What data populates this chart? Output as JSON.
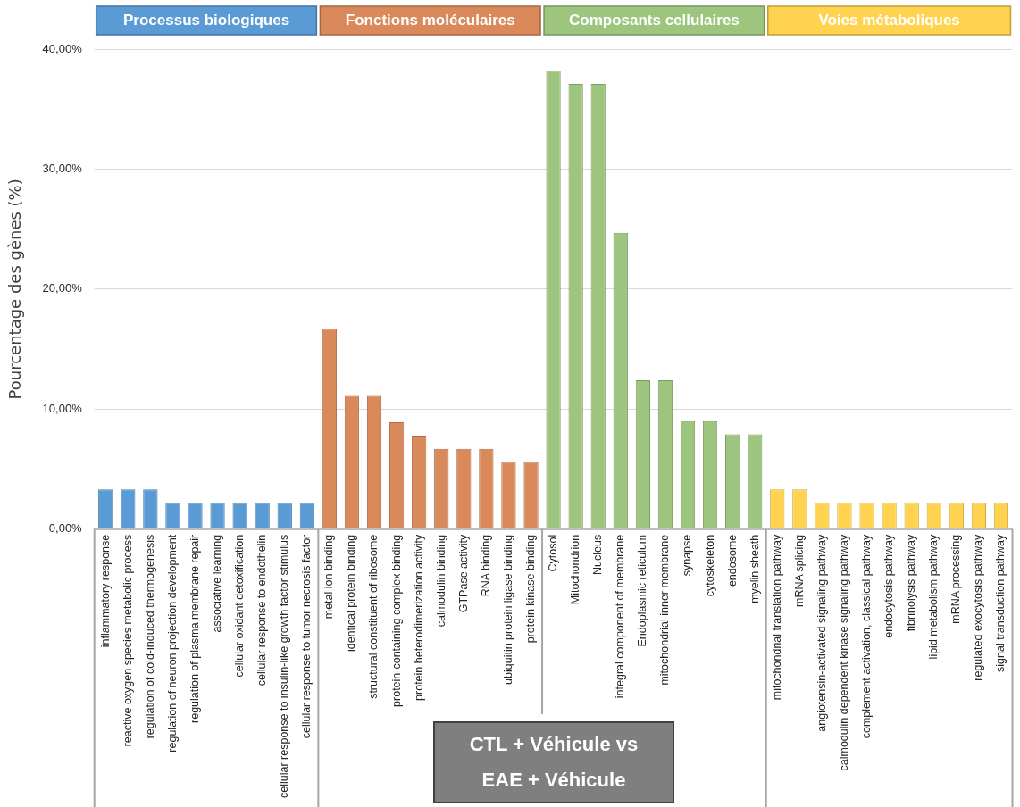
{
  "chart_data": {
    "type": "bar",
    "ylabel": "Pourcentage des gènes (%)",
    "categories": [
      "inflammatory response",
      "reactive oxygen species metabolic process",
      "regulation of cold-induced thermogenesis",
      "regulation of neuron projection development",
      "regulation of plasma membrane repair",
      "associative learning",
      "cellular oxidant detoxification",
      "cellular response to endothelin",
      "cellular response to insulin-like growth factor stimulus",
      "cellular response to tumor necrosis factor",
      "metal ion binding",
      "identical protein binding",
      "structural constituent of ribosome",
      "protein-containing complex binding",
      "protein heterodimerization activity",
      "calmodulin binding",
      "GTPase activity",
      "RNA binding",
      "ubiquitin protein ligase binding",
      "protein kinase binding",
      "Cytosol",
      "Mitochondrion",
      "Nucleus",
      "integral component of membrane",
      "Endoplasmic reticulum",
      "mitochondrial inner membrane",
      "synapse",
      "cytoskeleton",
      "endosome",
      "myelin sheath",
      "mitochondrial translation pathway",
      "mRNA splicing",
      "angiotensin-activated signaling pathway",
      "calmodulin dependent kinase signaling pathway",
      "complement activation, classical pathway",
      "endocytosis pathway",
      "fibrinolysis pathway",
      "lipid metabolism pathway",
      "mRNA processing",
      "regulated exocytosis pathway",
      "signal transduction pathway"
    ],
    "series": [
      {
        "name": "Processus biologiques",
        "color": "#5b9bd5",
        "values": [
          3.3,
          3.3,
          3.3,
          2.2,
          2.2,
          2.2,
          2.2,
          2.2,
          2.2,
          2.2,
          null,
          null,
          null,
          null,
          null,
          null,
          null,
          null,
          null,
          null,
          null,
          null,
          null,
          null,
          null,
          null,
          null,
          null,
          null,
          null,
          null,
          null,
          null,
          null,
          null,
          null,
          null,
          null,
          null,
          null,
          null
        ]
      },
      {
        "name": "Fonctions moléculaires",
        "color": "#d9895a",
        "values": [
          null,
          null,
          null,
          null,
          null,
          null,
          null,
          null,
          null,
          null,
          16.7,
          11.1,
          11.1,
          8.9,
          7.8,
          6.7,
          6.7,
          6.7,
          5.6,
          5.6,
          null,
          null,
          null,
          null,
          null,
          null,
          null,
          null,
          null,
          null,
          null,
          null,
          null,
          null,
          null,
          null,
          null,
          null,
          null,
          null,
          null
        ]
      },
      {
        "name": "Composants cellulaires",
        "color": "#9dc57e",
        "values": [
          null,
          null,
          null,
          null,
          null,
          null,
          null,
          null,
          null,
          null,
          null,
          null,
          null,
          null,
          null,
          null,
          null,
          null,
          null,
          null,
          38.2,
          37.1,
          37.1,
          24.7,
          12.4,
          12.4,
          9.0,
          9.0,
          7.9,
          7.9,
          null,
          null,
          null,
          null,
          null,
          null,
          null,
          null,
          null,
          null,
          null
        ]
      },
      {
        "name": "Voies métaboliques",
        "color": "#ffd34f",
        "values": [
          null,
          null,
          null,
          null,
          null,
          null,
          null,
          null,
          null,
          null,
          null,
          null,
          null,
          null,
          null,
          null,
          null,
          null,
          null,
          null,
          null,
          null,
          null,
          null,
          null,
          null,
          null,
          null,
          null,
          null,
          3.3,
          3.3,
          2.2,
          2.2,
          2.2,
          2.2,
          2.2,
          2.2,
          2.2,
          2.2,
          2.2
        ]
      }
    ],
    "ylim": [
      0,
      40
    ],
    "yticks": [
      {
        "value": 0,
        "label": "0,00%"
      },
      {
        "value": 10,
        "label": "10,00%"
      },
      {
        "value": 20,
        "label": "20,00%"
      },
      {
        "value": 30,
        "label": "30,00%"
      },
      {
        "value": 40,
        "label": "40,00%"
      }
    ],
    "grid": "y",
    "legend": "top",
    "annotations": [
      "CTL + Véhicule vs EAE + Véhicule"
    ]
  }
}
